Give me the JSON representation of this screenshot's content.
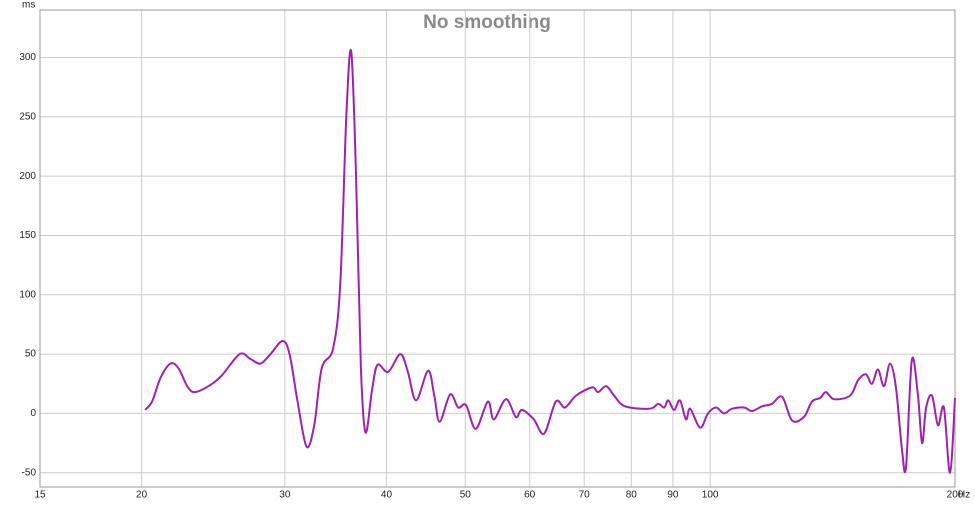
{
  "chart_data": {
    "type": "line",
    "title": "No smoothing",
    "xlabel": "Hz",
    "ylabel": "ms",
    "log_x": true,
    "grid": true,
    "xlim": [
      15,
      200
    ],
    "xticks": [
      15,
      20,
      30,
      40,
      50,
      60,
      70,
      80,
      90,
      100,
      200
    ],
    "ylim": [
      -62,
      340
    ],
    "yticks": [
      -50,
      0,
      50,
      100,
      150,
      200,
      250,
      300
    ],
    "x": [
      20.2,
      20.6,
      21.1,
      21.7,
      22.2,
      22.8,
      23.3,
      24.3,
      25.1,
      26.4,
      27.2,
      28.0,
      28.8,
      29.8,
      30.4,
      31.1,
      31.9,
      32.6,
      33.3,
      34.4,
      35.1,
      35.7,
      36.2,
      36.7,
      37.2,
      37.7,
      38.4,
      39.0,
      40.2,
      41.6,
      42.5,
      43.5,
      45.0,
      45.8,
      46.5,
      47.9,
      49.0,
      50.1,
      51.5,
      53.3,
      54.2,
      56.1,
      57.7,
      58.7,
      60.7,
      62.5,
      64.6,
      66.3,
      68.4,
      71.6,
      72.8,
      74.5,
      76.2,
      78.6,
      84.3,
      86.3,
      87.8,
      88.8,
      90.3,
      91.8,
      93.4,
      94.5,
      97.2,
      99.4,
      101.7,
      104.0,
      106.4,
      110.1,
      112.6,
      115.8,
      119.1,
      122.6,
      126.1,
      130.4,
      133.4,
      136.5,
      138.8,
      142.0,
      148.6,
      152.0,
      155.4,
      158.1,
      160.8,
      163.6,
      166.4,
      169.2,
      172.1,
      174.1,
      177.0,
      180.1,
      182.2,
      184.3,
      187.4,
      190.6,
      193.8,
      197.2,
      200.0
    ],
    "series": [
      {
        "color": "#a020b0",
        "values": [
          3,
          10,
          30,
          42,
          38,
          22,
          18,
          24,
          32,
          50,
          46,
          42,
          50,
          61,
          50,
          10,
          -28,
          -10,
          38,
          55,
          110,
          250,
          305,
          200,
          40,
          -16,
          20,
          41,
          35,
          50,
          35,
          11,
          36,
          15,
          -7,
          16,
          5,
          7,
          -13,
          10,
          -5,
          12,
          -3,
          3,
          -5,
          -17,
          10,
          5,
          15,
          22,
          18,
          23,
          15,
          6,
          4,
          8,
          5,
          11,
          3,
          11,
          -5,
          4,
          -12,
          0,
          5,
          0,
          4,
          5,
          2,
          6,
          8,
          14,
          -6,
          -3,
          10,
          13,
          18,
          12,
          15,
          28,
          33,
          25,
          37,
          23,
          42,
          22,
          -30,
          -45,
          45,
          15,
          -25,
          5,
          15,
          -10,
          5,
          -50,
          13
        ]
      }
    ]
  }
}
